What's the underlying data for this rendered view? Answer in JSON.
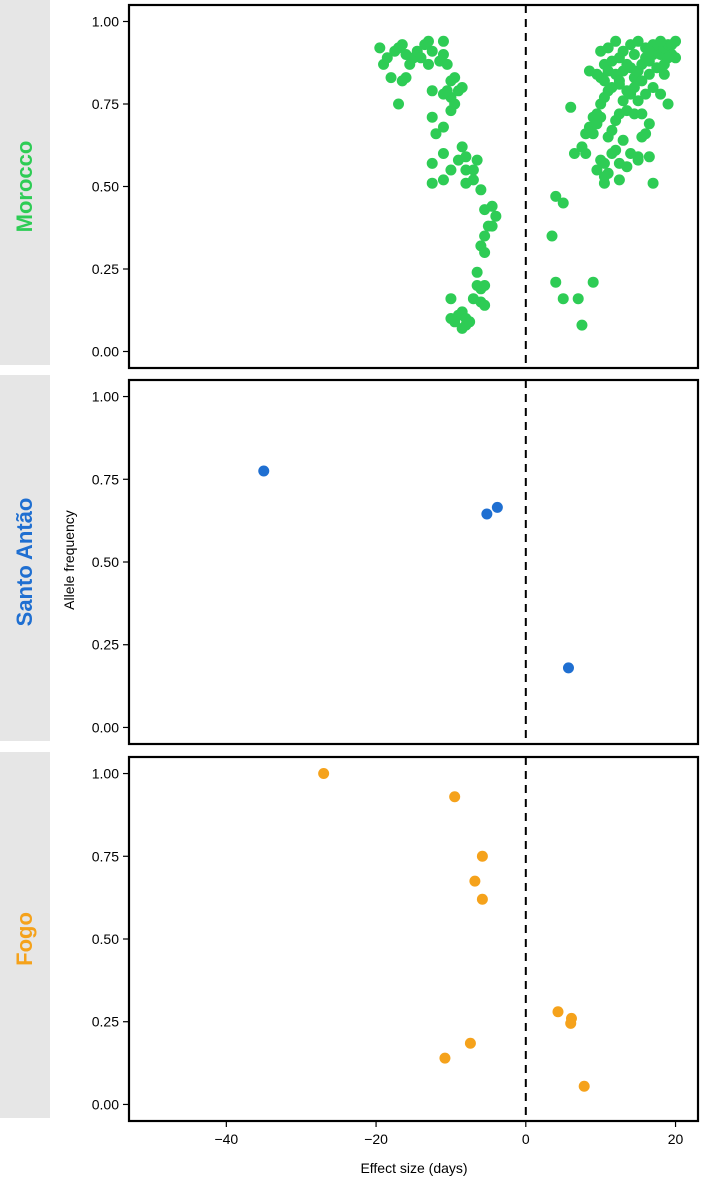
{
  "chart_data": {
    "type": "scatter",
    "xlabel": "Effect size (days)",
    "ylabel": "Allele frequency",
    "xlim": [
      -53,
      23
    ],
    "ylim": [
      -0.05,
      1.05
    ],
    "x_ticks": [
      -40,
      -20,
      0,
      20
    ],
    "x_tick_labels": [
      "−40",
      "−20",
      "0",
      "20"
    ],
    "y_ticks": [
      0,
      0.25,
      0.5,
      0.75,
      1
    ],
    "y_tick_labels": [
      "0.00",
      "0.25",
      "0.50",
      "0.75",
      "1.00"
    ],
    "reference_line": {
      "x": 0,
      "style": "dashed"
    },
    "grid": false,
    "panels": [
      {
        "label": "Morocco",
        "color": "#2ecc55",
        "points": [
          [
            -19.5,
            0.92
          ],
          [
            -19,
            0.87
          ],
          [
            -18.5,
            0.89
          ],
          [
            -18,
            0.83
          ],
          [
            -17.5,
            0.91
          ],
          [
            -17,
            0.92
          ],
          [
            -16.5,
            0.93
          ],
          [
            -16,
            0.9
          ],
          [
            -16.5,
            0.82
          ],
          [
            -17,
            0.75
          ],
          [
            -16,
            0.83
          ],
          [
            -15.5,
            0.87
          ],
          [
            -15,
            0.89
          ],
          [
            -14.5,
            0.91
          ],
          [
            -14,
            0.89
          ],
          [
            -13.5,
            0.93
          ],
          [
            -13,
            0.94
          ],
          [
            -12.5,
            0.91
          ],
          [
            -13,
            0.87
          ],
          [
            -12.5,
            0.79
          ],
          [
            -11.5,
            0.88
          ],
          [
            -11,
            0.9
          ],
          [
            -11,
            0.94
          ],
          [
            -10.5,
            0.87
          ],
          [
            -10,
            0.82
          ],
          [
            -9.5,
            0.83
          ],
          [
            -10,
            0.77
          ],
          [
            -11,
            0.78
          ],
          [
            -10.5,
            0.79
          ],
          [
            -9.5,
            0.75
          ],
          [
            -9,
            0.79
          ],
          [
            -8.5,
            0.8
          ],
          [
            -10,
            0.73
          ],
          [
            -12.5,
            0.71
          ],
          [
            -12,
            0.66
          ],
          [
            -11,
            0.68
          ],
          [
            -12.5,
            0.57
          ],
          [
            -11,
            0.6
          ],
          [
            -11,
            0.52
          ],
          [
            -12.5,
            0.51
          ],
          [
            -10,
            0.55
          ],
          [
            -9,
            0.58
          ],
          [
            -8.5,
            0.62
          ],
          [
            -8,
            0.59
          ],
          [
            -8,
            0.55
          ],
          [
            -7,
            0.55
          ],
          [
            -7,
            0.52
          ],
          [
            -6.5,
            0.58
          ],
          [
            -8,
            0.51
          ],
          [
            -6,
            0.49
          ],
          [
            -5.5,
            0.43
          ],
          [
            -4.5,
            0.44
          ],
          [
            -4,
            0.41
          ],
          [
            -5,
            0.38
          ],
          [
            -4.5,
            0.38
          ],
          [
            -5.5,
            0.35
          ],
          [
            -6,
            0.32
          ],
          [
            -5.5,
            0.3
          ],
          [
            -6.5,
            0.24
          ],
          [
            -6.5,
            0.2
          ],
          [
            -6,
            0.19
          ],
          [
            -5.5,
            0.2
          ],
          [
            -7,
            0.16
          ],
          [
            -6,
            0.15
          ],
          [
            -5.5,
            0.14
          ],
          [
            -10,
            0.16
          ],
          [
            -9,
            0.11
          ],
          [
            -8.5,
            0.12
          ],
          [
            -8,
            0.1
          ],
          [
            -9.5,
            0.09
          ],
          [
            -10,
            0.1
          ],
          [
            -8.5,
            0.07
          ],
          [
            -8,
            0.08
          ],
          [
            -7.5,
            0.09
          ],
          [
            4,
            0.47
          ],
          [
            5,
            0.45
          ],
          [
            3.5,
            0.35
          ],
          [
            4,
            0.21
          ],
          [
            5,
            0.16
          ],
          [
            7,
            0.16
          ],
          [
            7.5,
            0.08
          ],
          [
            9,
            0.21
          ],
          [
            6,
            0.74
          ],
          [
            6.5,
            0.6
          ],
          [
            7.5,
            0.62
          ],
          [
            8,
            0.6
          ],
          [
            8,
            0.66
          ],
          [
            8.5,
            0.68
          ],
          [
            9,
            0.71
          ],
          [
            9.5,
            0.69
          ],
          [
            9.5,
            0.72
          ],
          [
            10,
            0.75
          ],
          [
            10.5,
            0.77
          ],
          [
            11,
            0.79
          ],
          [
            9.5,
            0.55
          ],
          [
            10,
            0.58
          ],
          [
            10.5,
            0.57
          ],
          [
            10.5,
            0.51
          ],
          [
            11,
            0.54
          ],
          [
            10.5,
            0.53
          ],
          [
            11.5,
            0.6
          ],
          [
            12,
            0.61
          ],
          [
            12.5,
            0.57
          ],
          [
            13,
            0.64
          ],
          [
            13.5,
            0.56
          ],
          [
            12.5,
            0.52
          ],
          [
            14,
            0.6
          ],
          [
            15,
            0.59
          ],
          [
            15.5,
            0.65
          ],
          [
            16,
            0.66
          ],
          [
            16.5,
            0.59
          ],
          [
            15,
            0.58
          ],
          [
            17,
            0.51
          ],
          [
            11,
            0.65
          ],
          [
            11.5,
            0.67
          ],
          [
            10,
            0.71
          ],
          [
            9,
            0.66
          ],
          [
            12,
            0.7
          ],
          [
            12.5,
            0.72
          ],
          [
            13.5,
            0.73
          ],
          [
            14.5,
            0.72
          ],
          [
            15.5,
            0.72
          ],
          [
            16.5,
            0.69
          ],
          [
            13,
            0.76
          ],
          [
            14,
            0.78
          ],
          [
            15,
            0.76
          ],
          [
            16,
            0.78
          ],
          [
            17,
            0.8
          ],
          [
            18,
            0.78
          ],
          [
            19,
            0.75
          ],
          [
            10,
            0.83
          ],
          [
            10.5,
            0.87
          ],
          [
            11,
            0.85
          ],
          [
            11.5,
            0.88
          ],
          [
            12,
            0.84
          ],
          [
            12.5,
            0.82
          ],
          [
            13,
            0.85
          ],
          [
            13.5,
            0.87
          ],
          [
            14,
            0.86
          ],
          [
            14.5,
            0.83
          ],
          [
            15,
            0.85
          ],
          [
            15.5,
            0.87
          ],
          [
            16,
            0.89
          ],
          [
            16.5,
            0.88
          ],
          [
            17,
            0.9
          ],
          [
            17.5,
            0.91
          ],
          [
            18,
            0.9
          ],
          [
            18.5,
            0.92
          ],
          [
            19,
            0.93
          ],
          [
            19.5,
            0.93
          ],
          [
            20,
            0.94
          ],
          [
            19.5,
            0.9
          ],
          [
            18.5,
            0.87
          ],
          [
            17.5,
            0.86
          ],
          [
            16.5,
            0.84
          ],
          [
            15.5,
            0.82
          ],
          [
            14.5,
            0.8
          ],
          [
            13.5,
            0.79
          ],
          [
            12.5,
            0.81
          ],
          [
            11.5,
            0.8
          ],
          [
            10.5,
            0.82
          ],
          [
            9.5,
            0.84
          ],
          [
            8.5,
            0.85
          ],
          [
            10,
            0.91
          ],
          [
            11,
            0.92
          ],
          [
            12,
            0.94
          ],
          [
            13,
            0.91
          ],
          [
            14,
            0.93
          ],
          [
            15,
            0.94
          ],
          [
            16,
            0.92
          ],
          [
            17,
            0.93
          ],
          [
            18,
            0.94
          ],
          [
            19,
            0.89
          ],
          [
            20,
            0.89
          ],
          [
            12.5,
            0.89
          ],
          [
            14.5,
            0.9
          ],
          [
            16.5,
            0.91
          ],
          [
            18.5,
            0.84
          ]
        ]
      },
      {
        "label": "Santo Antão",
        "color": "#1f6fd1",
        "points": [
          [
            -35,
            0.775
          ],
          [
            -5.2,
            0.645
          ],
          [
            -3.8,
            0.665
          ],
          [
            5.7,
            0.18
          ]
        ]
      },
      {
        "label": "Fogo",
        "color": "#f5a21b",
        "points": [
          [
            -27,
            1.0
          ],
          [
            -9.5,
            0.93
          ],
          [
            -5.8,
            0.75
          ],
          [
            -6.8,
            0.675
          ],
          [
            -5.8,
            0.62
          ],
          [
            4.3,
            0.28
          ],
          [
            6.1,
            0.26
          ],
          [
            6,
            0.245
          ],
          [
            -7.4,
            0.185
          ],
          [
            -10.8,
            0.14
          ],
          [
            7.8,
            0.055
          ]
        ]
      }
    ]
  }
}
